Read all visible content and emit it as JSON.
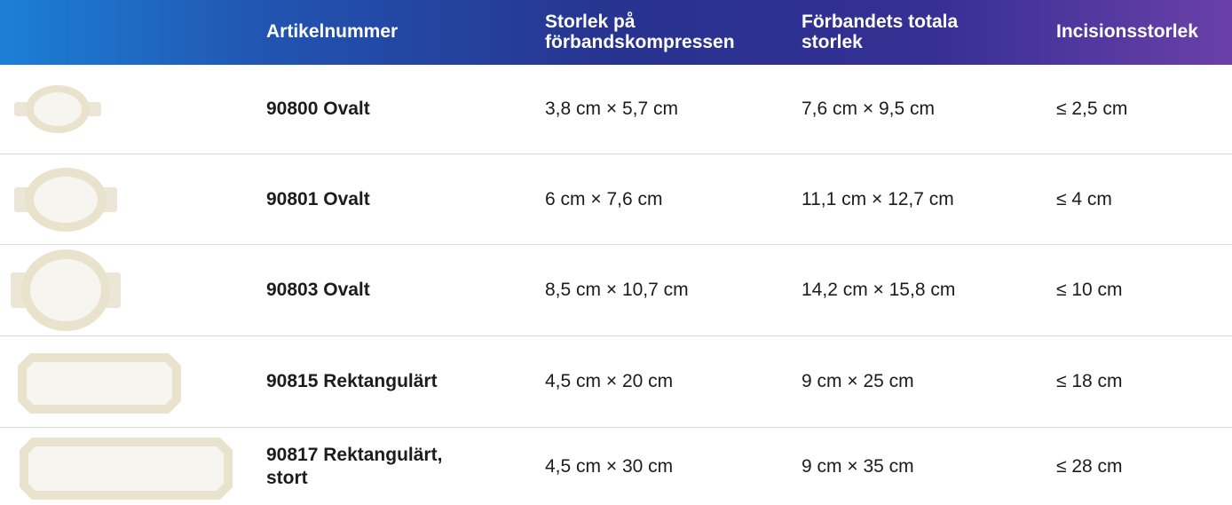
{
  "table": {
    "headers": [
      "Artikelnummer",
      "Storlek på förbandskompressen",
      "Förbandets totala storlek",
      "Incisionsstorlek"
    ],
    "rows": [
      [
        "90800 Ovalt",
        "3,8 cm × 5,7 cm",
        "7,6 cm × 9,5 cm",
        "≤ 2,5 cm"
      ],
      [
        "90801 Ovalt",
        "6 cm × 7,6 cm",
        "11,1 cm × 12,7 cm",
        "≤ 4 cm"
      ],
      [
        "90803 Ovalt",
        "8,5 cm × 10,7 cm",
        "14,2 cm × 15,8 cm",
        "≤ 10 cm"
      ],
      [
        "90815 Rektangulärt",
        "4,5 cm × 20 cm",
        "9 cm × 25 cm",
        "≤ 18 cm"
      ],
      [
        "90817 Rektangulärt, stort",
        "4,5 cm × 30 cm",
        "9 cm × 35 cm",
        "≤ 28 cm"
      ]
    ]
  }
}
